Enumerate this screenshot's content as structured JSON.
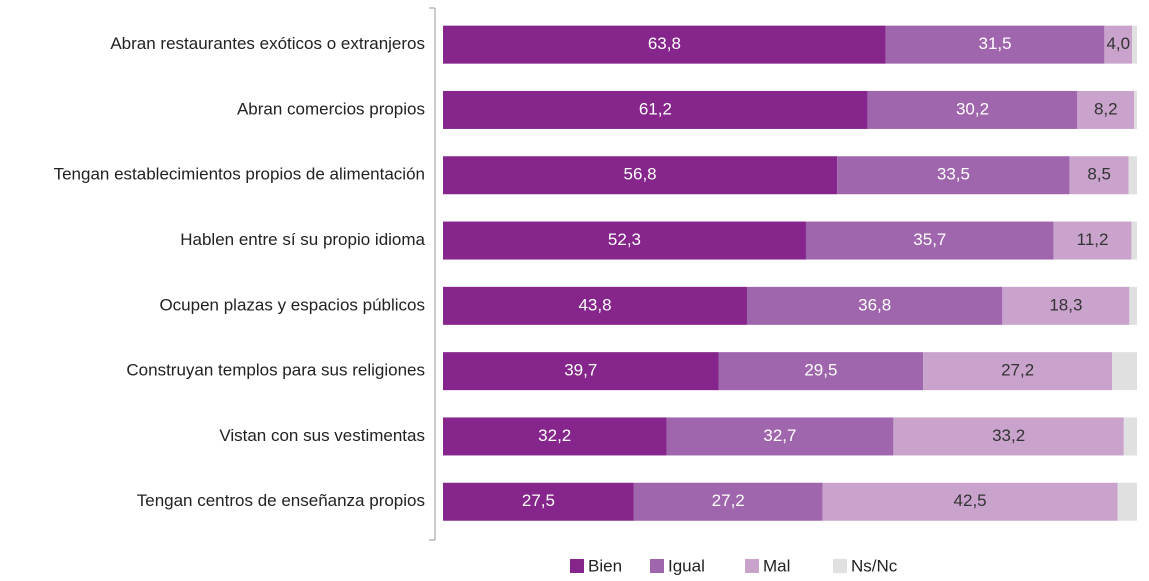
{
  "chart_data": {
    "type": "stacked-barh",
    "categories": [
      "Abran restaurantes exóticos o extranjeros",
      "Abran comercios propios",
      "Tengan establecimientos propios de alimentación",
      "Hablen entre sí su propio idioma",
      "Ocupen plazas y espacios públicos",
      "Construyan templos para sus religiones",
      "Vistan con sus vestimentas",
      "Tengan centros de enseñanza propios"
    ],
    "series": [
      {
        "name": "Bien",
        "color": "#86258b",
        "values": [
          63.8,
          61.2,
          56.8,
          52.3,
          43.8,
          39.7,
          32.2,
          27.5
        ],
        "value_labels": [
          "63,8",
          "61,2",
          "56,8",
          "52,3",
          "43,8",
          "39,7",
          "32,2",
          "27,5"
        ]
      },
      {
        "name": "Igual",
        "color": "#a066ad",
        "values": [
          31.5,
          30.2,
          33.5,
          35.7,
          36.8,
          29.5,
          32.7,
          27.2
        ],
        "value_labels": [
          "31,5",
          "30,2",
          "33,5",
          "35,7",
          "36,8",
          "29,5",
          "32,7",
          "27,2"
        ]
      },
      {
        "name": "Mal",
        "color": "#c9a3cc",
        "values": [
          4.0,
          8.2,
          8.5,
          11.2,
          18.3,
          27.2,
          33.2,
          42.5
        ],
        "value_labels": [
          "4,0",
          "8,2",
          "8,5",
          "11,2",
          "18,3",
          "27,2",
          "33,2",
          "42,5"
        ]
      },
      {
        "name": "Ns/Nc",
        "color": "#e0e0e0",
        "values": [
          0.7,
          0.4,
          1.2,
          0.8,
          1.1,
          3.6,
          1.9,
          2.8
        ]
      }
    ],
    "xlim": [
      0,
      100
    ],
    "legend": "bottom"
  }
}
